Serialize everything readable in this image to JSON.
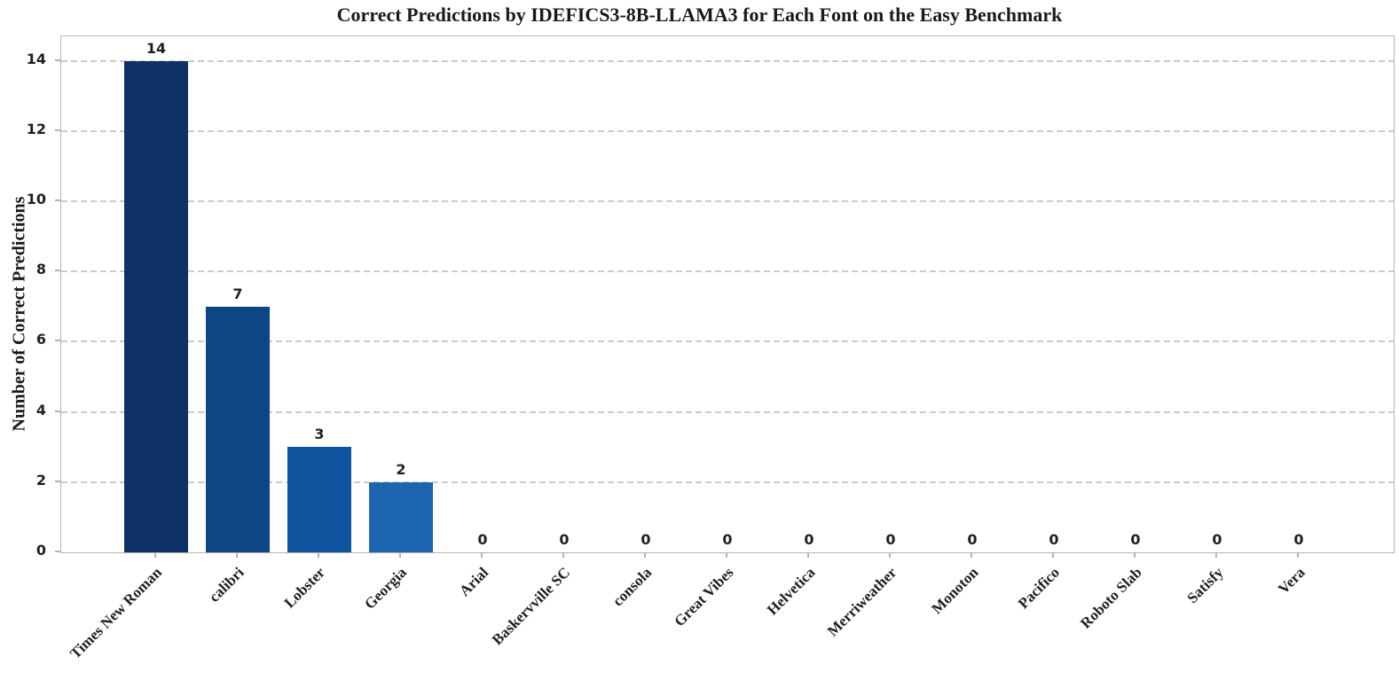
{
  "chart_data": {
    "type": "bar",
    "title": "Correct Predictions by IDEFICS3-8B-LLAMA3 for Each Font on the Easy Benchmark",
    "xlabel": "",
    "ylabel": "Number of Correct Predictions",
    "categories": [
      "Times New Roman",
      "calibri",
      "Lobster",
      "Georgia",
      "Arial",
      "Baskervville SC",
      "consola",
      "Great Vibes",
      "Helvetica",
      "Merriweather",
      "Monoton",
      "Pacifico",
      "Roboto Slab",
      "Satisfy",
      "Vera"
    ],
    "values": [
      14,
      7,
      3,
      2,
      0,
      0,
      0,
      0,
      0,
      0,
      0,
      0,
      0,
      0,
      0
    ],
    "value_labels": [
      "14",
      "7",
      "3",
      "2",
      "0",
      "0",
      "0",
      "0",
      "0",
      "0",
      "0",
      "0",
      "0",
      "0",
      "0"
    ],
    "bar_colors": [
      "#0e3166",
      "#0e4585",
      "#0d549d",
      "#1d65af"
    ],
    "bar_color_default": "#1d65af",
    "yticks": [
      0,
      2,
      4,
      6,
      8,
      10,
      12,
      14
    ],
    "ylim": [
      0,
      14.7
    ],
    "grid": "horizontal-dashed",
    "legend": "none",
    "colors": {
      "grid": "#cbcbcb",
      "spine": "#b4b4b4",
      "text": "#1f1f1f",
      "background": "#ffffff"
    }
  }
}
